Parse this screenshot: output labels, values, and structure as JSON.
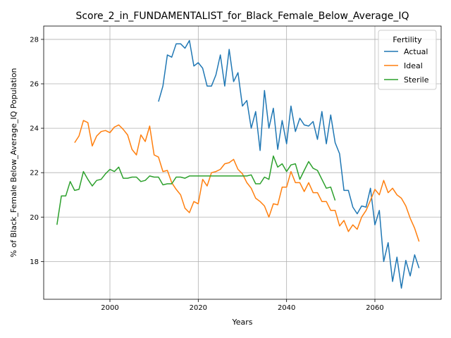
{
  "chart_data": {
    "type": "line",
    "title": "Score_2_in_FUNDAMENTALIST_for_Black_Female_Below_Average_IQ",
    "xlabel": "Years",
    "ylabel": "% of Black_Female Below_Average_IQ Population",
    "xlim": [
      1985,
      2075
    ],
    "ylim": [
      16.3,
      28.6
    ],
    "xticks": [
      2000,
      2020,
      2040,
      2060
    ],
    "yticks": [
      18,
      20,
      22,
      24,
      26,
      28
    ],
    "grid": true,
    "legend": {
      "title": "Fertility",
      "placement": "top-right",
      "entries": [
        "Actual",
        "Ideal",
        "Sterile"
      ]
    },
    "series": [
      {
        "name": "Actual",
        "color": "#1f77b4",
        "x": [
          2011,
          2012,
          2013,
          2014,
          2015,
          2016,
          2017,
          2018,
          2019,
          2020,
          2021,
          2022,
          2023,
          2024,
          2025,
          2026,
          2027,
          2028,
          2029,
          2030,
          2031,
          2032,
          2033,
          2034,
          2035,
          2036,
          2037,
          2038,
          2039,
          2040,
          2041,
          2042,
          2043,
          2044,
          2045,
          2046,
          2047,
          2048,
          2049,
          2050,
          2051,
          2052,
          2053,
          2054,
          2055,
          2056,
          2057,
          2058,
          2059,
          2060,
          2061,
          2062,
          2063,
          2064,
          2065,
          2066,
          2067,
          2068,
          2069,
          2070
        ],
        "y": [
          25.2,
          25.9,
          27.3,
          27.2,
          27.8,
          27.8,
          27.6,
          27.95,
          26.8,
          26.95,
          26.7,
          25.9,
          25.9,
          26.4,
          27.3,
          25.9,
          27.55,
          26.1,
          26.5,
          25.0,
          25.25,
          24.0,
          24.75,
          23.0,
          25.7,
          24.0,
          24.9,
          23.05,
          24.35,
          23.3,
          25.0,
          23.85,
          24.45,
          24.15,
          24.1,
          24.3,
          23.5,
          24.75,
          23.3,
          24.6,
          23.35,
          22.85,
          21.2,
          21.2,
          20.45,
          20.15,
          20.5,
          20.45,
          21.3,
          19.65,
          20.3,
          18.0,
          18.85,
          17.1,
          18.2,
          16.8,
          18.05,
          17.35,
          18.3,
          17.7
        ]
      },
      {
        "name": "Ideal",
        "color": "#ff7f0e",
        "x": [
          1992,
          1993,
          1994,
          1995,
          1996,
          1997,
          1998,
          1999,
          2000,
          2001,
          2002,
          2003,
          2004,
          2005,
          2006,
          2007,
          2008,
          2009,
          2010,
          2011,
          2012,
          2013,
          2014,
          2015,
          2016,
          2017,
          2018,
          2019,
          2020,
          2021,
          2022,
          2023,
          2024,
          2025,
          2026,
          2027,
          2028,
          2029,
          2030,
          2031,
          2032,
          2033,
          2034,
          2035,
          2036,
          2037,
          2038,
          2039,
          2040,
          2041,
          2042,
          2043,
          2044,
          2045,
          2046,
          2047,
          2048,
          2049,
          2050,
          2051,
          2052,
          2053,
          2054,
          2055,
          2056,
          2057,
          2058,
          2059,
          2060,
          2061,
          2062,
          2063,
          2064,
          2065,
          2066,
          2067,
          2068,
          2069,
          2070
        ],
        "y": [
          23.35,
          23.65,
          24.35,
          24.25,
          23.2,
          23.65,
          23.85,
          23.9,
          23.8,
          24.05,
          24.15,
          23.95,
          23.7,
          23.05,
          22.8,
          23.7,
          23.4,
          24.1,
          22.8,
          22.7,
          22.05,
          22.1,
          21.55,
          21.25,
          21.0,
          20.4,
          20.2,
          20.7,
          20.6,
          21.7,
          21.4,
          22.0,
          22.05,
          22.15,
          22.4,
          22.45,
          22.6,
          22.15,
          21.95,
          21.55,
          21.3,
          20.85,
          20.7,
          20.5,
          20.0,
          20.6,
          20.55,
          21.35,
          21.35,
          22.05,
          21.55,
          21.55,
          21.15,
          21.55,
          21.1,
          21.1,
          20.7,
          20.7,
          20.3,
          20.3,
          19.6,
          19.85,
          19.35,
          19.65,
          19.45,
          20.0,
          20.3,
          20.75,
          21.25,
          21.0,
          21.65,
          21.1,
          21.3,
          21.0,
          20.85,
          20.5,
          19.95,
          19.5,
          18.9
        ]
      },
      {
        "name": "Sterile",
        "color": "#2ca02c",
        "x": [
          1988,
          1989,
          1990,
          1991,
          1992,
          1993,
          1994,
          1995,
          1996,
          1997,
          1998,
          1999,
          2000,
          2001,
          2002,
          2003,
          2004,
          2005,
          2006,
          2007,
          2008,
          2009,
          2010,
          2011,
          2012,
          2013,
          2014,
          2015,
          2016,
          2017,
          2018,
          2019,
          2020,
          2021,
          2022,
          2023,
          2024,
          2025,
          2026,
          2027,
          2028,
          2029,
          2030,
          2031,
          2032,
          2033,
          2034,
          2035,
          2036,
          2037,
          2038,
          2039,
          2040,
          2041,
          2042,
          2043,
          2044,
          2045,
          2046,
          2047,
          2048,
          2049,
          2050,
          2051
        ],
        "y": [
          19.65,
          20.95,
          20.95,
          21.6,
          21.2,
          21.25,
          22.05,
          21.7,
          21.4,
          21.65,
          21.7,
          21.95,
          22.15,
          22.05,
          22.25,
          21.75,
          21.75,
          21.8,
          21.8,
          21.6,
          21.65,
          21.85,
          21.8,
          21.8,
          21.45,
          21.5,
          21.5,
          21.8,
          21.8,
          21.75,
          21.85,
          21.85,
          21.85,
          21.85,
          21.85,
          21.85,
          21.85,
          21.85,
          21.85,
          21.85,
          21.85,
          21.85,
          21.85,
          21.85,
          21.9,
          21.5,
          21.5,
          21.8,
          21.7,
          22.75,
          22.25,
          22.4,
          22.05,
          22.35,
          22.4,
          21.7,
          22.1,
          22.5,
          22.2,
          22.1,
          21.7,
          21.3,
          21.35,
          20.75
        ]
      }
    ]
  }
}
